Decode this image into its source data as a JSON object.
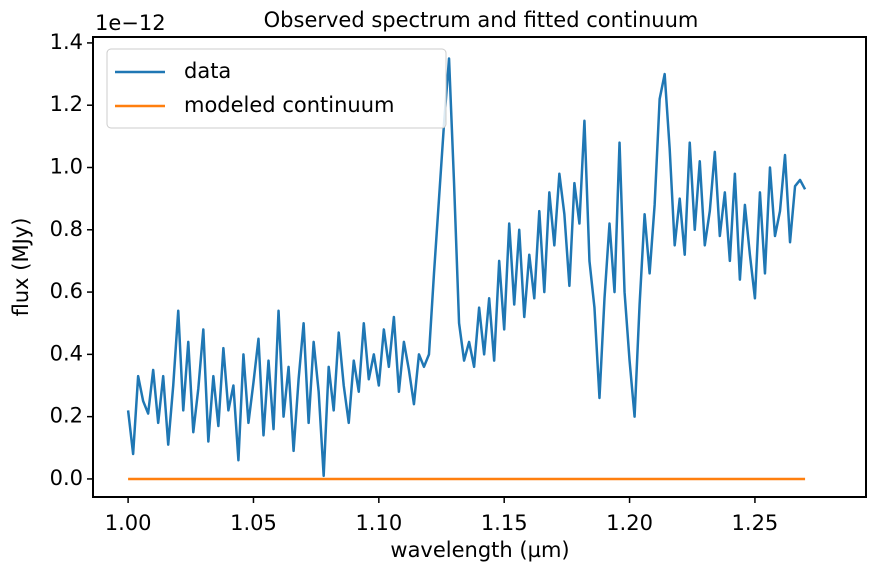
{
  "chart_data": {
    "type": "line",
    "title": "Observed spectrum and fitted continuum",
    "x_label": "wavelength (µm)",
    "y_label": "flux (MJy)",
    "y_offset_label": "1e−12",
    "xlim": [
      0.986,
      1.2943
    ],
    "ylim": [
      -0.058,
      1.419
    ],
    "xticks": [
      {
        "value": 1.0,
        "label": "1.00"
      },
      1.05,
      {
        "value": 1.1,
        "label": "1.10"
      },
      1.15,
      {
        "value": 1.2,
        "label": "1.20"
      },
      1.25
    ],
    "yticks": [
      {
        "value": 0,
        "label": "0.0"
      },
      0.2,
      0.4,
      0.6,
      0.8,
      {
        "value": 1,
        "label": "1.0"
      },
      1.2,
      1.4
    ],
    "legend": "upper left",
    "series": [
      {
        "name": "data",
        "color": "#1f77b4",
        "x": [
          1.0,
          1.002,
          1.004,
          1.006,
          1.008,
          1.01,
          1.012,
          1.014,
          1.016,
          1.018,
          1.02,
          1.022,
          1.024,
          1.026,
          1.028,
          1.03,
          1.032,
          1.034,
          1.036,
          1.038,
          1.04,
          1.042,
          1.044,
          1.046,
          1.048,
          1.05,
          1.052,
          1.054,
          1.056,
          1.058,
          1.06,
          1.062,
          1.064,
          1.066,
          1.068,
          1.07,
          1.072,
          1.074,
          1.076,
          1.078,
          1.08,
          1.082,
          1.084,
          1.086,
          1.088,
          1.09,
          1.092,
          1.094,
          1.096,
          1.098,
          1.1,
          1.102,
          1.104,
          1.106,
          1.108,
          1.11,
          1.112,
          1.114,
          1.116,
          1.118,
          1.12,
          1.122,
          1.124,
          1.126,
          1.128,
          1.13,
          1.132,
          1.134,
          1.136,
          1.138,
          1.14,
          1.142,
          1.144,
          1.146,
          1.148,
          1.15,
          1.152,
          1.154,
          1.156,
          1.158,
          1.16,
          1.162,
          1.164,
          1.166,
          1.168,
          1.17,
          1.172,
          1.174,
          1.176,
          1.178,
          1.18,
          1.182,
          1.184,
          1.186,
          1.188,
          1.19,
          1.192,
          1.194,
          1.196,
          1.198,
          1.2,
          1.202,
          1.204,
          1.206,
          1.208,
          1.21,
          1.212,
          1.214,
          1.216,
          1.218,
          1.22,
          1.222,
          1.224,
          1.226,
          1.228,
          1.23,
          1.232,
          1.234,
          1.236,
          1.238,
          1.24,
          1.242,
          1.244,
          1.246,
          1.248,
          1.25,
          1.252,
          1.254,
          1.256,
          1.258,
          1.26,
          1.262,
          1.264,
          1.266,
          1.268,
          1.27
        ],
        "values": [
          0.22,
          0.08,
          0.33,
          0.25,
          0.21,
          0.35,
          0.18,
          0.33,
          0.11,
          0.3,
          0.54,
          0.22,
          0.44,
          0.15,
          0.29,
          0.48,
          0.12,
          0.33,
          0.17,
          0.42,
          0.22,
          0.3,
          0.06,
          0.4,
          0.18,
          0.31,
          0.45,
          0.14,
          0.38,
          0.16,
          0.54,
          0.2,
          0.36,
          0.09,
          0.32,
          0.5,
          0.18,
          0.44,
          0.28,
          0.01,
          0.36,
          0.22,
          0.47,
          0.3,
          0.18,
          0.38,
          0.28,
          0.5,
          0.32,
          0.4,
          0.3,
          0.48,
          0.36,
          0.52,
          0.28,
          0.44,
          0.35,
          0.24,
          0.4,
          0.36,
          0.4,
          0.66,
          0.9,
          1.14,
          1.35,
          0.95,
          0.5,
          0.38,
          0.44,
          0.36,
          0.55,
          0.4,
          0.58,
          0.38,
          0.7,
          0.48,
          0.82,
          0.56,
          0.8,
          0.52,
          0.72,
          0.58,
          0.86,
          0.6,
          0.92,
          0.75,
          0.98,
          0.85,
          0.62,
          0.95,
          0.82,
          1.15,
          0.7,
          0.55,
          0.26,
          0.58,
          0.82,
          0.6,
          1.08,
          0.6,
          0.38,
          0.2,
          0.56,
          0.85,
          0.66,
          0.88,
          1.22,
          1.3,
          1.06,
          0.75,
          0.9,
          0.72,
          1.08,
          0.8,
          1.02,
          0.75,
          0.86,
          1.05,
          0.78,
          0.92,
          0.7,
          0.98,
          0.64,
          0.88,
          0.72,
          0.58,
          0.92,
          0.66,
          1.0,
          0.78,
          0.86,
          1.04,
          0.76,
          0.94,
          0.96,
          0.93
        ]
      },
      {
        "name": "modeled continuum",
        "color": "#ff7f0e",
        "x": [
          1.0,
          1.27
        ],
        "values": [
          0,
          0
        ]
      }
    ]
  }
}
